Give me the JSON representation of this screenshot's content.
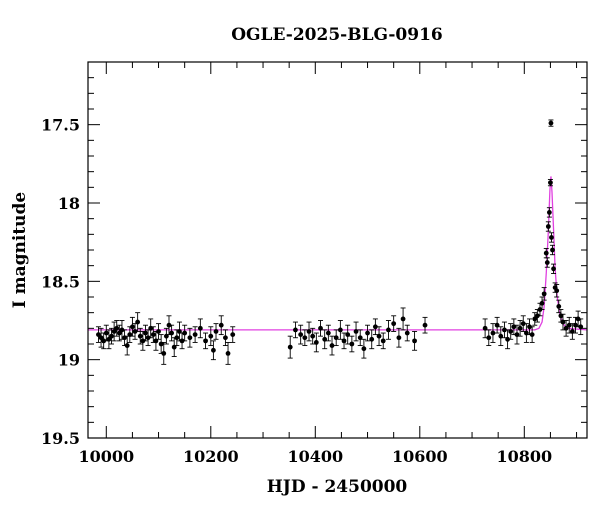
{
  "chart_data": {
    "type": "scatter",
    "title": "OGLE-2025-BLG-0916",
    "xlabel": "HJD - 2450000",
    "ylabel": "I magnitude",
    "xlim": [
      9965,
      10920
    ],
    "ylim": [
      19.5,
      17.1
    ],
    "y_inverted": true,
    "xticks": [
      "10000",
      "10200",
      "10400",
      "10600",
      "10800"
    ],
    "yticks": [
      "17.5",
      "18",
      "18.5",
      "19",
      "19.5"
    ],
    "grid": false,
    "legend": "none",
    "colors": {
      "points": "#000000",
      "model": "#e040e0"
    },
    "baseline_mag": 18.81,
    "model": {
      "x": [
        9965,
        10820,
        10828,
        10834,
        10838,
        10842,
        10846,
        10849,
        10851,
        10853,
        10856,
        10859,
        10863,
        10868,
        10874,
        10882,
        10920
      ],
      "y": [
        18.81,
        18.81,
        18.8,
        18.76,
        18.66,
        18.45,
        18.18,
        17.92,
        17.83,
        17.93,
        18.17,
        18.42,
        18.6,
        18.71,
        18.77,
        18.8,
        18.81
      ]
    },
    "points": [
      {
        "x": 9985,
        "y": 18.84,
        "e": 0.05
      },
      {
        "x": 9990,
        "y": 18.86,
        "e": 0.06
      },
      {
        "x": 9995,
        "y": 18.88,
        "e": 0.05
      },
      {
        "x": 10000,
        "y": 18.83,
        "e": 0.05
      },
      {
        "x": 10005,
        "y": 18.87,
        "e": 0.06
      },
      {
        "x": 10010,
        "y": 18.85,
        "e": 0.05
      },
      {
        "x": 10015,
        "y": 18.82,
        "e": 0.06
      },
      {
        "x": 10020,
        "y": 18.8,
        "e": 0.05
      },
      {
        "x": 10025,
        "y": 18.83,
        "e": 0.05
      },
      {
        "x": 10030,
        "y": 18.81,
        "e": 0.06
      },
      {
        "x": 10035,
        "y": 18.86,
        "e": 0.05
      },
      {
        "x": 10040,
        "y": 18.91,
        "e": 0.06
      },
      {
        "x": 10045,
        "y": 18.84,
        "e": 0.05
      },
      {
        "x": 10050,
        "y": 18.79,
        "e": 0.06
      },
      {
        "x": 10055,
        "y": 18.82,
        "e": 0.05
      },
      {
        "x": 10060,
        "y": 18.76,
        "e": 0.06
      },
      {
        "x": 10065,
        "y": 18.85,
        "e": 0.05
      },
      {
        "x": 10070,
        "y": 18.88,
        "e": 0.06
      },
      {
        "x": 10075,
        "y": 18.83,
        "e": 0.05
      },
      {
        "x": 10080,
        "y": 18.86,
        "e": 0.05
      },
      {
        "x": 10085,
        "y": 18.8,
        "e": 0.06
      },
      {
        "x": 10090,
        "y": 18.84,
        "e": 0.05
      },
      {
        "x": 10095,
        "y": 18.88,
        "e": 0.06
      },
      {
        "x": 10100,
        "y": 18.82,
        "e": 0.05
      },
      {
        "x": 10105,
        "y": 18.9,
        "e": 0.06
      },
      {
        "x": 10110,
        "y": 18.96,
        "e": 0.07
      },
      {
        "x": 10115,
        "y": 18.85,
        "e": 0.05
      },
      {
        "x": 10120,
        "y": 18.78,
        "e": 0.06
      },
      {
        "x": 10125,
        "y": 18.83,
        "e": 0.05
      },
      {
        "x": 10130,
        "y": 18.92,
        "e": 0.06
      },
      {
        "x": 10135,
        "y": 18.86,
        "e": 0.05
      },
      {
        "x": 10140,
        "y": 18.82,
        "e": 0.06
      },
      {
        "x": 10145,
        "y": 18.88,
        "e": 0.05
      },
      {
        "x": 10150,
        "y": 18.83,
        "e": 0.05
      },
      {
        "x": 10160,
        "y": 18.86,
        "e": 0.06
      },
      {
        "x": 10170,
        "y": 18.84,
        "e": 0.05
      },
      {
        "x": 10180,
        "y": 18.8,
        "e": 0.06
      },
      {
        "x": 10190,
        "y": 18.88,
        "e": 0.05
      },
      {
        "x": 10200,
        "y": 18.85,
        "e": 0.06
      },
      {
        "x": 10205,
        "y": 18.94,
        "e": 0.06
      },
      {
        "x": 10210,
        "y": 18.82,
        "e": 0.05
      },
      {
        "x": 10220,
        "y": 18.78,
        "e": 0.06
      },
      {
        "x": 10228,
        "y": 18.86,
        "e": 0.05
      },
      {
        "x": 10233,
        "y": 18.96,
        "e": 0.07
      },
      {
        "x": 10242,
        "y": 18.84,
        "e": 0.05
      },
      {
        "x": 10352,
        "y": 18.92,
        "e": 0.07
      },
      {
        "x": 10362,
        "y": 18.81,
        "e": 0.05
      },
      {
        "x": 10372,
        "y": 18.84,
        "e": 0.06
      },
      {
        "x": 10380,
        "y": 18.86,
        "e": 0.05
      },
      {
        "x": 10388,
        "y": 18.82,
        "e": 0.06
      },
      {
        "x": 10395,
        "y": 18.85,
        "e": 0.05
      },
      {
        "x": 10402,
        "y": 18.89,
        "e": 0.06
      },
      {
        "x": 10410,
        "y": 18.8,
        "e": 0.05
      },
      {
        "x": 10418,
        "y": 18.87,
        "e": 0.06
      },
      {
        "x": 10425,
        "y": 18.83,
        "e": 0.05
      },
      {
        "x": 10432,
        "y": 18.91,
        "e": 0.06
      },
      {
        "x": 10440,
        "y": 18.86,
        "e": 0.05
      },
      {
        "x": 10448,
        "y": 18.81,
        "e": 0.06
      },
      {
        "x": 10455,
        "y": 18.88,
        "e": 0.05
      },
      {
        "x": 10462,
        "y": 18.84,
        "e": 0.06
      },
      {
        "x": 10470,
        "y": 18.9,
        "e": 0.05
      },
      {
        "x": 10478,
        "y": 18.82,
        "e": 0.06
      },
      {
        "x": 10486,
        "y": 18.86,
        "e": 0.05
      },
      {
        "x": 10493,
        "y": 18.93,
        "e": 0.06
      },
      {
        "x": 10500,
        "y": 18.83,
        "e": 0.05
      },
      {
        "x": 10508,
        "y": 18.87,
        "e": 0.06
      },
      {
        "x": 10515,
        "y": 18.79,
        "e": 0.05
      },
      {
        "x": 10522,
        "y": 18.85,
        "e": 0.06
      },
      {
        "x": 10530,
        "y": 18.88,
        "e": 0.05
      },
      {
        "x": 10540,
        "y": 18.81,
        "e": 0.06
      },
      {
        "x": 10550,
        "y": 18.77,
        "e": 0.05
      },
      {
        "x": 10560,
        "y": 18.86,
        "e": 0.06
      },
      {
        "x": 10568,
        "y": 18.74,
        "e": 0.07
      },
      {
        "x": 10576,
        "y": 18.83,
        "e": 0.05
      },
      {
        "x": 10590,
        "y": 18.88,
        "e": 0.06
      },
      {
        "x": 10610,
        "y": 18.78,
        "e": 0.05
      },
      {
        "x": 10725,
        "y": 18.8,
        "e": 0.06
      },
      {
        "x": 10732,
        "y": 18.86,
        "e": 0.05
      },
      {
        "x": 10740,
        "y": 18.83,
        "e": 0.06
      },
      {
        "x": 10748,
        "y": 18.78,
        "e": 0.05
      },
      {
        "x": 10755,
        "y": 18.85,
        "e": 0.06
      },
      {
        "x": 10762,
        "y": 18.81,
        "e": 0.05
      },
      {
        "x": 10768,
        "y": 18.87,
        "e": 0.06
      },
      {
        "x": 10774,
        "y": 18.82,
        "e": 0.05
      },
      {
        "x": 10780,
        "y": 18.79,
        "e": 0.05
      },
      {
        "x": 10786,
        "y": 18.84,
        "e": 0.06
      },
      {
        "x": 10792,
        "y": 18.8,
        "e": 0.05
      },
      {
        "x": 10798,
        "y": 18.77,
        "e": 0.05
      },
      {
        "x": 10804,
        "y": 18.83,
        "e": 0.06
      },
      {
        "x": 10810,
        "y": 18.79,
        "e": 0.05
      },
      {
        "x": 10815,
        "y": 18.84,
        "e": 0.05
      },
      {
        "x": 10820,
        "y": 18.74,
        "e": 0.04
      },
      {
        "x": 10825,
        "y": 18.72,
        "e": 0.04
      },
      {
        "x": 10830,
        "y": 18.68,
        "e": 0.04
      },
      {
        "x": 10834,
        "y": 18.64,
        "e": 0.04
      },
      {
        "x": 10838,
        "y": 18.58,
        "e": 0.04
      },
      {
        "x": 10842,
        "y": 18.32,
        "e": 0.03
      },
      {
        "x": 10844,
        "y": 18.38,
        "e": 0.03
      },
      {
        "x": 10846,
        "y": 18.15,
        "e": 0.03
      },
      {
        "x": 10848,
        "y": 18.06,
        "e": 0.03
      },
      {
        "x": 10850,
        "y": 17.87,
        "e": 0.02
      },
      {
        "x": 10851,
        "y": 17.49,
        "e": 0.02
      },
      {
        "x": 10852,
        "y": 18.22,
        "e": 0.03
      },
      {
        "x": 10854,
        "y": 18.3,
        "e": 0.03
      },
      {
        "x": 10856,
        "y": 18.42,
        "e": 0.03
      },
      {
        "x": 10859,
        "y": 18.54,
        "e": 0.03
      },
      {
        "x": 10862,
        "y": 18.56,
        "e": 0.04
      },
      {
        "x": 10866,
        "y": 18.66,
        "e": 0.04
      },
      {
        "x": 10870,
        "y": 18.72,
        "e": 0.04
      },
      {
        "x": 10874,
        "y": 18.76,
        "e": 0.05
      },
      {
        "x": 10880,
        "y": 18.8,
        "e": 0.05
      },
      {
        "x": 10886,
        "y": 18.78,
        "e": 0.05
      },
      {
        "x": 10892,
        "y": 18.82,
        "e": 0.05
      },
      {
        "x": 10898,
        "y": 18.78,
        "e": 0.05
      },
      {
        "x": 10903,
        "y": 18.74,
        "e": 0.05
      },
      {
        "x": 10908,
        "y": 18.79,
        "e": 0.05
      }
    ]
  }
}
